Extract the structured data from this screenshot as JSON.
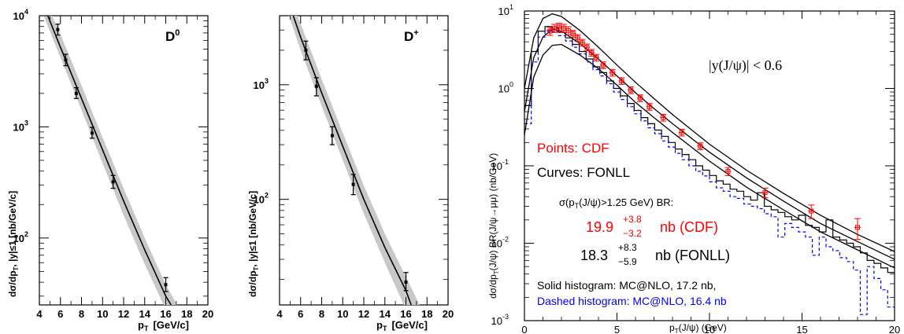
{
  "colors": {
    "axis": "#000000",
    "band": "#c8c8c8",
    "cdf": "#ff0000",
    "dashed_hist": "#0000ff",
    "black": "#000000"
  },
  "chart_data": [
    {
      "type": "scatter",
      "panel_label": "D",
      "panel_label_sup": "0",
      "xlabel": "p",
      "xlabel_sub": "T",
      "xlabel_unit": "[GeV/c]",
      "ylabel": "dσ/dp",
      "ylabel_sub": "T",
      "ylabel_rest": ", |y|≤1 [nb/GeV/c]",
      "xlim": [
        4,
        20
      ],
      "ylim": [
        25,
        10000
      ],
      "log_y": true,
      "x_ticks": [
        4,
        6,
        8,
        10,
        12,
        14,
        16,
        18,
        20
      ],
      "y_ticks": [
        {
          "value": 100,
          "base": "10",
          "exp": "2"
        },
        {
          "value": 1000,
          "base": "10",
          "exp": "3"
        },
        {
          "value": 10000,
          "base": "10",
          "exp": "4"
        }
      ],
      "points": [
        {
          "x": 5.75,
          "y": 7500,
          "ylo": 6700,
          "yhi": 8400
        },
        {
          "x": 6.5,
          "y": 4000,
          "ylo": 3550,
          "yhi": 4500
        },
        {
          "x": 7.5,
          "y": 2000,
          "ylo": 1800,
          "yhi": 2250
        },
        {
          "x": 9.0,
          "y": 880,
          "ylo": 790,
          "yhi": 990
        },
        {
          "x": 11.0,
          "y": 320,
          "ylo": 280,
          "yhi": 365
        },
        {
          "x": 16.0,
          "y": 38,
          "ylo": 33,
          "yhi": 44
        }
      ],
      "curve": [
        [
          4.8,
          10000
        ],
        [
          6,
          5200
        ],
        [
          8,
          1800
        ],
        [
          10,
          620
        ],
        [
          12,
          215
        ],
        [
          14,
          78
        ],
        [
          16,
          30
        ],
        [
          16.5,
          25
        ]
      ],
      "band_upper": [
        [
          5.2,
          10000
        ],
        [
          6,
          6800
        ],
        [
          8,
          2350
        ],
        [
          10,
          800
        ],
        [
          12,
          280
        ],
        [
          14,
          100
        ],
        [
          16,
          38
        ],
        [
          17.1,
          25
        ]
      ],
      "band_lower": [
        [
          4.4,
          10000
        ],
        [
          6,
          4200
        ],
        [
          8,
          1420
        ],
        [
          10,
          470
        ],
        [
          12,
          160
        ],
        [
          14,
          58
        ],
        [
          15.8,
          25
        ]
      ]
    },
    {
      "type": "scatter",
      "panel_label": "D",
      "panel_label_sup": "+",
      "xlabel": "p",
      "xlabel_sub": "T",
      "xlabel_unit": "[GeV/c]",
      "ylabel": "dσ/dp",
      "ylabel_sub": "T",
      "ylabel_rest": ", |y|≤1 [nb/GeV/c]",
      "xlim": [
        4,
        20
      ],
      "ylim": [
        12,
        4000
      ],
      "log_y": true,
      "x_ticks": [
        4,
        6,
        8,
        10,
        12,
        14,
        16,
        18,
        20
      ],
      "y_ticks": [
        {
          "value": 100,
          "base": "10",
          "exp": "2"
        },
        {
          "value": 1000,
          "base": "10",
          "exp": "3"
        }
      ],
      "points": [
        {
          "x": 6.5,
          "y": 2000,
          "ylo": 1650,
          "yhi": 2400
        },
        {
          "x": 7.5,
          "y": 970,
          "ylo": 800,
          "yhi": 1150
        },
        {
          "x": 9.0,
          "y": 360,
          "ylo": 300,
          "yhi": 430
        },
        {
          "x": 11.0,
          "y": 135,
          "ylo": 110,
          "yhi": 165
        },
        {
          "x": 16.0,
          "y": 19,
          "ylo": 16,
          "yhi": 23
        }
      ],
      "curve": [
        [
          5.3,
          4000
        ],
        [
          6,
          2600
        ],
        [
          8,
          850
        ],
        [
          10,
          290
        ],
        [
          12,
          100
        ],
        [
          14,
          38
        ],
        [
          16,
          16
        ],
        [
          16.5,
          12
        ]
      ],
      "band_upper": [
        [
          5.7,
          4000
        ],
        [
          6,
          3400
        ],
        [
          8,
          1120
        ],
        [
          10,
          380
        ],
        [
          12,
          132
        ],
        [
          14,
          50
        ],
        [
          16,
          21
        ],
        [
          17.3,
          12
        ]
      ],
      "band_lower": [
        [
          4.9,
          4000
        ],
        [
          6,
          2000
        ],
        [
          8,
          650
        ],
        [
          10,
          220
        ],
        [
          12,
          75
        ],
        [
          14,
          28
        ],
        [
          15.8,
          12
        ]
      ]
    },
    {
      "type": "line",
      "xlabel": "p",
      "xlabel_sub": "T",
      "xlabel_rest": "(J/ψ) (GeV)",
      "ylabel": "dσ/dp",
      "ylabel_sub": "T",
      "ylabel_rest": "(J/ψ) BR(J/ψ→μμ) (nb/GeV)",
      "xlim": [
        0,
        20
      ],
      "ylim": [
        0.001,
        10
      ],
      "log_y": true,
      "x_ticks": [
        0,
        5,
        10,
        15,
        20
      ],
      "y_ticks": [
        {
          "value": 0.001,
          "base": "10",
          "exp": "-3"
        },
        {
          "value": 0.01,
          "base": "10",
          "exp": "-2"
        },
        {
          "value": 0.1,
          "base": "10",
          "exp": "-1"
        },
        {
          "value": 1,
          "base": "10",
          "exp": "0"
        },
        {
          "value": 10,
          "base": "10",
          "exp": "1"
        }
      ],
      "annotations": {
        "rapidity": "|y(J/ψ)| < 0.6",
        "points_label": "Points: CDF",
        "curves_label": "Curves: FONLL",
        "sigma_label": "σ(p",
        "sigma_sub": "T",
        "sigma_rest": "(J/ψ)>1.25 GeV) BR:",
        "cdf_value": "19.9",
        "cdf_up": "+3.8",
        "cdf_down": "−3.2",
        "cdf_rest": "nb (CDF)",
        "fonll_value": "18.3",
        "fonll_up": "+8.3",
        "fonll_down": "−5.9",
        "fonll_rest": "nb (FONLL)",
        "solid_hist": "Solid histogram: MC@NLO, 17.2 nb,",
        "dashed_hist": "Dashed histogram: MC@NLO, 16.4 nb"
      },
      "cdf_points": [
        {
          "x": 1.375,
          "y": 5.5,
          "err": 0.12
        },
        {
          "x": 1.625,
          "y": 6.0,
          "err": 0.12
        },
        {
          "x": 1.875,
          "y": 6.2,
          "err": 0.12
        },
        {
          "x": 2.125,
          "y": 6.0,
          "err": 0.12
        },
        {
          "x": 2.375,
          "y": 5.6,
          "err": 0.12
        },
        {
          "x": 2.625,
          "y": 5.1,
          "err": 0.1
        },
        {
          "x": 2.875,
          "y": 4.5,
          "err": 0.1
        },
        {
          "x": 3.125,
          "y": 3.9,
          "err": 0.1
        },
        {
          "x": 3.375,
          "y": 3.4,
          "err": 0.1
        },
        {
          "x": 3.625,
          "y": 2.9,
          "err": 0.1
        },
        {
          "x": 3.875,
          "y": 2.5,
          "err": 0.1
        },
        {
          "x": 4.25,
          "y": 2.0,
          "err": 0.1
        },
        {
          "x": 4.75,
          "y": 1.6,
          "err": 0.1
        },
        {
          "x": 5.25,
          "y": 1.25,
          "err": 0.1
        },
        {
          "x": 5.75,
          "y": 0.95,
          "err": 0.1
        },
        {
          "x": 6.25,
          "y": 0.75,
          "err": 0.1
        },
        {
          "x": 6.75,
          "y": 0.58,
          "err": 0.1
        },
        {
          "x": 7.5,
          "y": 0.42,
          "err": 0.1
        },
        {
          "x": 8.5,
          "y": 0.27,
          "err": 0.1
        },
        {
          "x": 9.5,
          "y": 0.18,
          "err": 0.1
        },
        {
          "x": 11.0,
          "y": 0.085,
          "err": 0.12
        },
        {
          "x": 13.0,
          "y": 0.045,
          "err": 0.14
        },
        {
          "x": 15.5,
          "y": 0.026,
          "err": 0.2
        },
        {
          "x": 18.0,
          "y": 0.016,
          "err": 0.3
        }
      ],
      "fonll_central": [
        [
          0,
          0.5
        ],
        [
          0.5,
          2.5
        ],
        [
          1,
          4.6
        ],
        [
          1.5,
          5.8
        ],
        [
          2,
          5.5
        ],
        [
          3,
          3.8
        ],
        [
          4,
          2.4
        ],
        [
          5,
          1.45
        ],
        [
          6,
          0.88
        ],
        [
          7,
          0.55
        ],
        [
          8,
          0.35
        ],
        [
          10,
          0.15
        ],
        [
          12,
          0.07
        ],
        [
          14,
          0.035
        ],
        [
          16,
          0.018
        ],
        [
          18,
          0.0105
        ],
        [
          20,
          0.0062
        ]
      ],
      "fonll_upper": [
        [
          0,
          1.0
        ],
        [
          0.5,
          4.5
        ],
        [
          1,
          8.0
        ],
        [
          1.5,
          9.2
        ],
        [
          2,
          8.5
        ],
        [
          3,
          5.6
        ],
        [
          4,
          3.4
        ],
        [
          5,
          2.0
        ],
        [
          6,
          1.2
        ],
        [
          7,
          0.74
        ],
        [
          8,
          0.46
        ],
        [
          10,
          0.19
        ],
        [
          12,
          0.088
        ],
        [
          14,
          0.044
        ],
        [
          16,
          0.023
        ],
        [
          18,
          0.013
        ],
        [
          20,
          0.0078
        ]
      ],
      "fonll_lower": [
        [
          0,
          0.25
        ],
        [
          0.5,
          1.4
        ],
        [
          1,
          2.7
        ],
        [
          1.5,
          3.6
        ],
        [
          2,
          3.7
        ],
        [
          3,
          2.7
        ],
        [
          4,
          1.8
        ],
        [
          5,
          1.1
        ],
        [
          6,
          0.66
        ],
        [
          7,
          0.42
        ],
        [
          8,
          0.27
        ],
        [
          10,
          0.115
        ],
        [
          12,
          0.053
        ],
        [
          14,
          0.027
        ],
        [
          16,
          0.014
        ],
        [
          18,
          0.0082
        ],
        [
          20,
          0.0048
        ]
      ],
      "solid_histogram": [
        0.6,
        3.0,
        5.5,
        6.3,
        6.0,
        5.3,
        4.5,
        3.7,
        3.0,
        2.4,
        1.9,
        1.6,
        1.25,
        1.0,
        0.8,
        0.64,
        0.52,
        0.42,
        0.35,
        0.29,
        0.24,
        0.2,
        0.165,
        0.14,
        0.12,
        0.1,
        0.088,
        0.075,
        0.064,
        0.058,
        0.05,
        0.047,
        0.04,
        0.036,
        0.045,
        0.03,
        0.027,
        0.025,
        0.022,
        0.02,
        0.023,
        0.017,
        0.016,
        0.014,
        0.02,
        0.012,
        0.011,
        0.01,
        0.009,
        0.0075,
        0.006,
        0.0055,
        0.0048,
        0.0042
      ],
      "dashed_histogram": [
        0.35,
        2.2,
        4.6,
        5.6,
        5.4,
        4.8,
        4.1,
        3.4,
        2.8,
        2.2,
        1.75,
        1.45,
        1.15,
        0.9,
        0.72,
        0.58,
        0.47,
        0.38,
        0.31,
        0.26,
        0.21,
        0.175,
        0.145,
        0.12,
        0.1,
        0.085,
        0.074,
        0.062,
        0.052,
        0.047,
        0.04,
        0.038,
        0.032,
        0.03,
        0.028,
        0.024,
        0.022,
        0.012,
        0.018,
        0.016,
        0.014,
        0.012,
        0.007,
        0.012,
        0.009,
        0.008,
        0.0065,
        0.0058,
        0.0045,
        0.0012,
        0.005,
        0.0035,
        0.0025,
        0.0015
      ]
    }
  ]
}
